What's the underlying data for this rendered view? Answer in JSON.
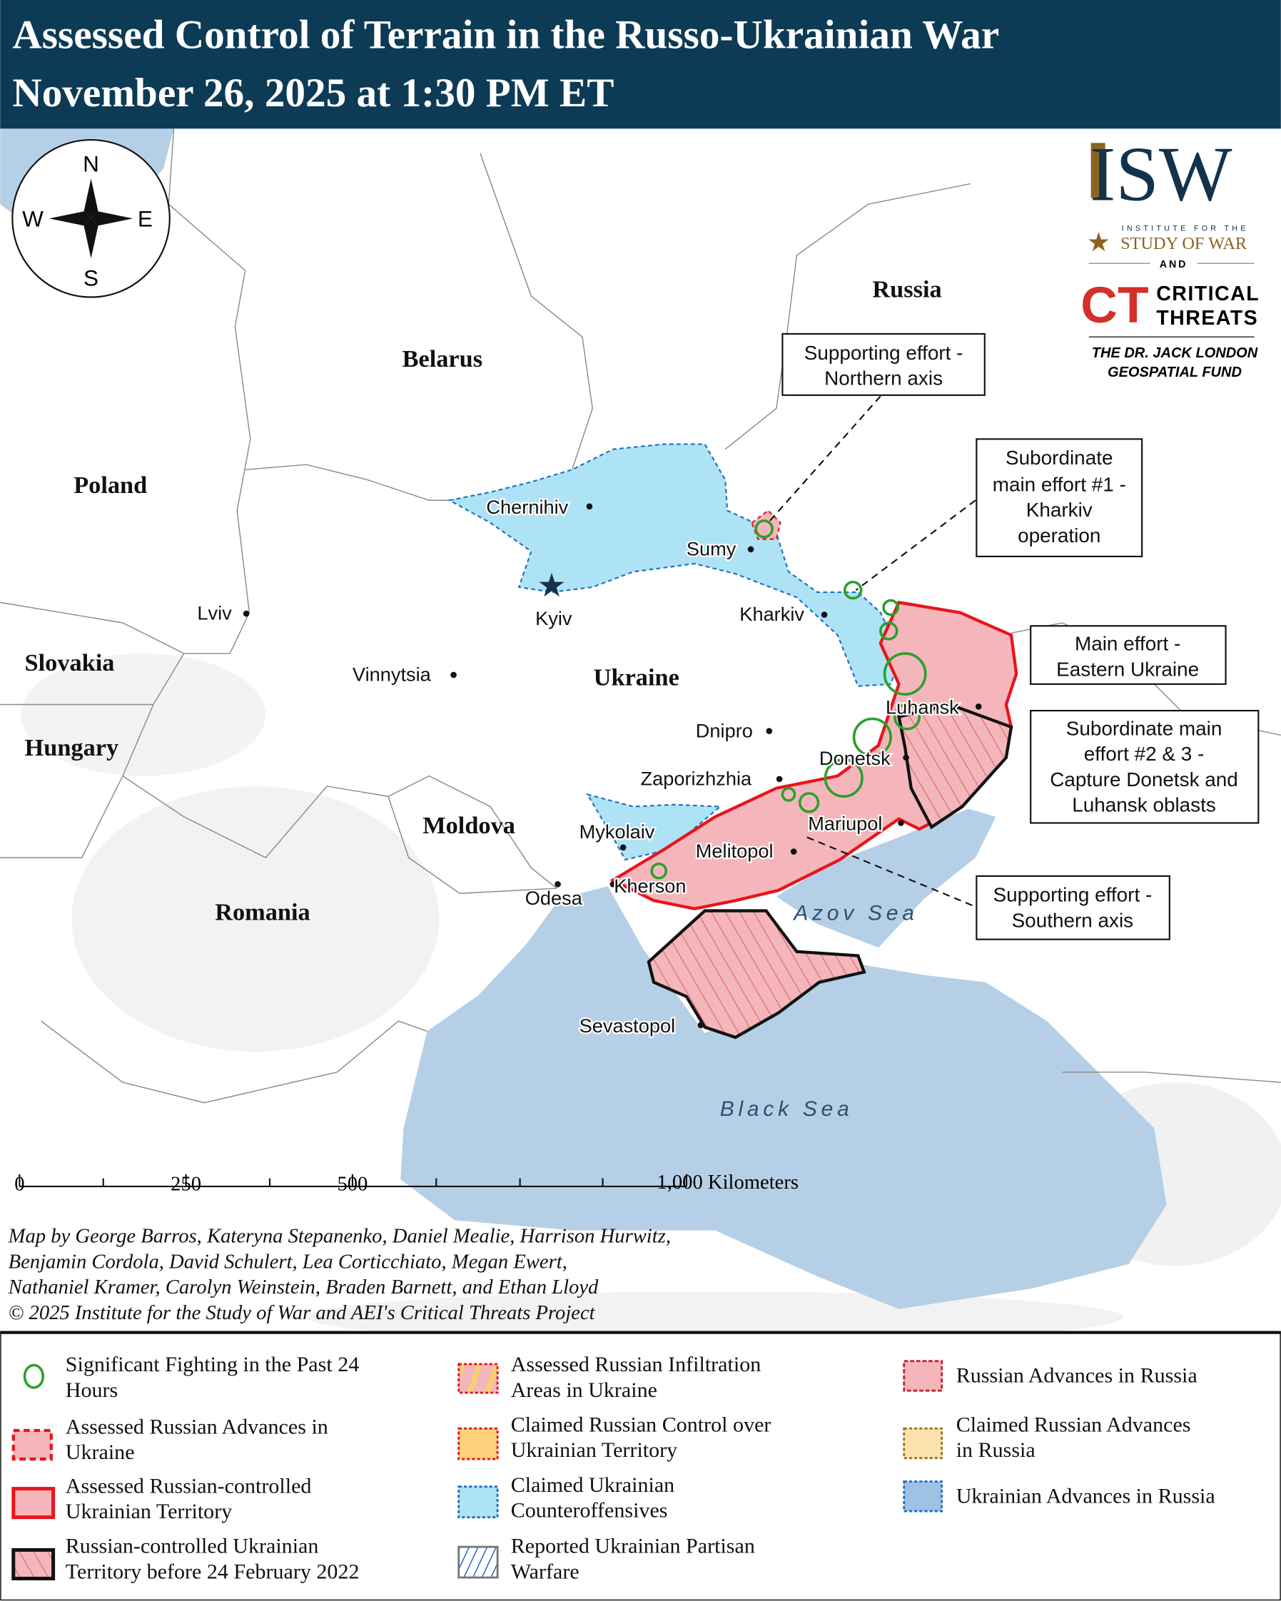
{
  "header": {
    "title_line1": "Assessed Control of Terrain in the Russo-Ukrainian War",
    "title_line2": "November 26, 2025 at 1:30 PM ET",
    "background_color": "#0d3b55"
  },
  "compass": {
    "n": "N",
    "s": "S",
    "e": "E",
    "w": "W"
  },
  "logos": {
    "isw_letters": "ISW",
    "isw_sub1": "INSTITUTE FOR THE",
    "isw_sub2": "STUDY OF WAR",
    "and": "AND",
    "ct_mark": "CT",
    "ct_line1": "CRITICAL",
    "ct_line2": "THREATS",
    "fund_line1": "THE DR. JACK LONDON",
    "fund_line2": "GEOSPATIAL FUND"
  },
  "countries": {
    "russia": "Russia",
    "belarus": "Belarus",
    "poland": "Poland",
    "slovakia": "Slovakia",
    "hungary": "Hungary",
    "ukraine": "Ukraine",
    "moldova": "Moldova",
    "romania": "Romania"
  },
  "seas": {
    "azov": "Azov Sea",
    "black": "Black Sea"
  },
  "cities": {
    "chernihiv": "Chernihiv",
    "sumy": "Sumy",
    "kyiv": "Kyiv",
    "kharkiv": "Kharkiv",
    "lviv": "Lviv",
    "vinnytsia": "Vinnytsia",
    "luhansk": "Luhansk",
    "dnipro": "Dnipro",
    "donetsk": "Donetsk",
    "zaporizhzhia": "Zaporizhzhia",
    "mariupol": "Mariupol",
    "mykolaiv": "Mykolaiv",
    "melitopol": "Melitopol",
    "kherson": "Kherson",
    "odesa": "Odesa",
    "sevastopol": "Sevastopol"
  },
  "callouts": {
    "northern": [
      "Supporting effort -",
      "Northern axis"
    ],
    "kharkiv": [
      "Subordinate",
      "main effort #1 -",
      "Kharkiv",
      "operation"
    ],
    "eastern": [
      "Main effort -",
      "Eastern Ukraine"
    ],
    "donetsk_luhansk": [
      "Subordinate main",
      "effort #2 & 3 -",
      "Capture Donetsk and",
      "Luhansk oblasts"
    ],
    "southern": [
      "Supporting effort -",
      "Southern axis"
    ]
  },
  "scale_bar": {
    "labels": [
      "0",
      "250",
      "500",
      "1,000 Kilometers"
    ]
  },
  "credits": [
    "Map by George Barros, Kateryna Stepanenko, Daniel Mealie, Harrison Hurwitz,",
    "Benjamin Cordola, David Schulert, Lea Corticchiato, Megan Ewert,",
    "Nathaniel Kramer, Carolyn Weinstein, Braden Barnett, and Ethan Lloyd",
    "© 2025 Institute for the Study of War and AEI's Critical Threats Project"
  ],
  "legend": {
    "items": [
      {
        "lines": [
          "Significant Fighting in the Past 24",
          "Hours"
        ],
        "icon": "green-circle"
      },
      {
        "lines": [
          "Assessed Russian Advances in",
          "Ukraine"
        ],
        "icon": "pink-dashed-red"
      },
      {
        "lines": [
          "Assessed Russian-controlled",
          "Ukrainian Territory"
        ],
        "icon": "pink-solid-red"
      },
      {
        "lines": [
          "Russian-controlled Ukrainian",
          "Territory before 24 February 2022"
        ],
        "icon": "hatched-black"
      },
      {
        "lines": [
          "Assessed Russian Infiltration",
          "Areas in Ukraine"
        ],
        "icon": "pink-yellow-stripe"
      },
      {
        "lines": [
          "Claimed Russian Control over",
          "Ukrainian Territory"
        ],
        "icon": "orange-dotted-red"
      },
      {
        "lines": [
          "Claimed Ukrainian",
          "Counteroffensives"
        ],
        "icon": "lightblue-dotted-blue"
      },
      {
        "lines": [
          "Reported Ukrainian Partisan",
          "Warfare"
        ],
        "icon": "blue-hatch"
      },
      {
        "lines": [
          "Russian Advances in Russia"
        ],
        "icon": "pink-dashed-darkred"
      },
      {
        "lines": [
          "Claimed Russian Advances",
          "in Russia"
        ],
        "icon": "tan-dotted-brown"
      },
      {
        "lines": [
          "Ukrainian Advances in Russia"
        ],
        "icon": "blue-dotted-blue"
      }
    ]
  },
  "colors": {
    "water": "#b5cfe6",
    "russian_control": "#f4b6bb",
    "russian_border": "#e8141b",
    "claimed_ukrainian": "#aee3f5",
    "ukrainian_border": "#1f6fc4",
    "fighting": "#2aa02a",
    "isw_navy": "#14324a",
    "isw_gold": "#8a6420",
    "ct_red": "#d3302a"
  }
}
